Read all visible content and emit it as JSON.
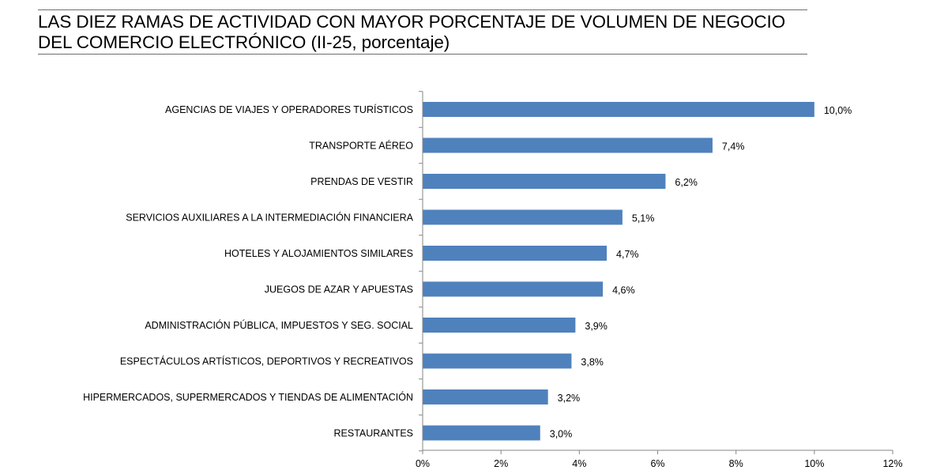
{
  "chart_data": {
    "type": "bar",
    "orientation": "horizontal",
    "title_lines": [
      "LAS DIEZ RAMAS DE ACTIVIDAD CON MAYOR PORCENTAJE DE VOLUMEN DE NEGOCIO",
      "DEL COMERCIO ELECTRÓNICO (II-25, porcentaje)"
    ],
    "categories": [
      "AGENCIAS DE VIAJES Y OPERADORES TURÍSTICOS",
      "TRANSPORTE AÉREO",
      "PRENDAS DE VESTIR",
      "SERVICIOS AUXILIARES A LA INTERMEDIACIÓN FINANCIERA",
      "HOTELES  Y ALOJAMIENTOS SIMILARES",
      "JUEGOS DE AZAR Y APUESTAS",
      "ADMINISTRACIÓN PÚBLICA, IMPUESTOS Y SEG. SOCIAL",
      "ESPECTÁCULOS ARTÍSTICOS, DEPORTIVOS Y RECREATIVOS",
      "HIPERMERCADOS, SUPERMERCADOS Y TIENDAS DE ALIMENTACIÓN",
      "RESTAURANTES"
    ],
    "values": [
      10.0,
      7.4,
      6.2,
      5.1,
      4.7,
      4.6,
      3.9,
      3.8,
      3.2,
      3.0
    ],
    "value_labels": [
      "10,0%",
      "7,4%",
      "6,2%",
      "5,1%",
      "4,7%",
      "4,6%",
      "3,9%",
      "3,8%",
      "3,2%",
      "3,0%"
    ],
    "xlim": [
      0,
      12
    ],
    "xticks": [
      0,
      2,
      4,
      6,
      8,
      10,
      12
    ],
    "xtick_labels": [
      "0%",
      "2%",
      "4%",
      "6%",
      "8%",
      "10%",
      "12%"
    ],
    "bar_color": "#4f81bd",
    "axis_color": "#868686",
    "grid": false
  }
}
